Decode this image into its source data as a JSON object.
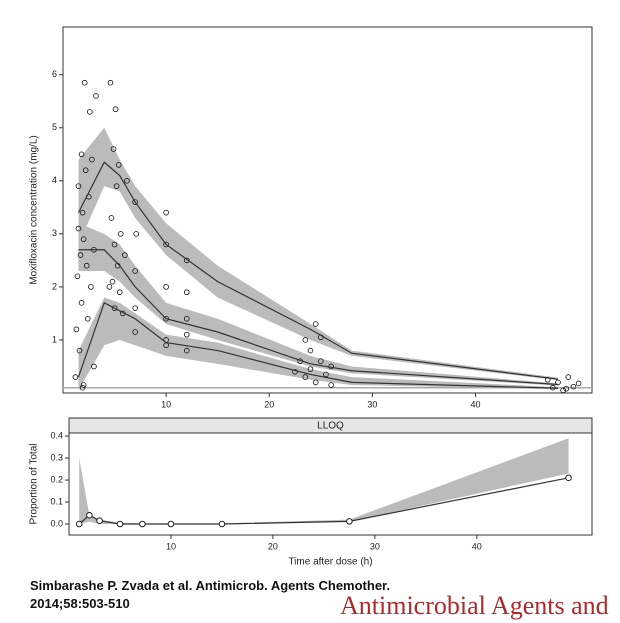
{
  "chart_data": [
    {
      "type": "line",
      "ylabel": "Moxifloxacin concentration (mg/L)",
      "xlim": [
        0,
        51.3
      ],
      "ylim": [
        0,
        6.9
      ],
      "xticks": [
        10,
        20,
        30,
        40
      ],
      "yticks": [
        1,
        2,
        3,
        4,
        5,
        6
      ],
      "lloq": 0.1,
      "x": [
        1.5,
        4,
        5.5,
        7,
        10,
        15,
        24,
        28,
        48
      ],
      "bands": [
        {
          "color": "#bbbbbb",
          "low": [
            2.8,
            3.9,
            3.8,
            3.3,
            2.6,
            1.8,
            1.0,
            0.7,
            0.24
          ],
          "high": [
            4.4,
            5.0,
            4.4,
            3.9,
            3.2,
            2.4,
            1.3,
            0.8,
            0.29
          ]
        },
        {
          "color": "#bbbbbb",
          "low": [
            2.3,
            2.3,
            2.1,
            1.8,
            1.3,
            1.0,
            0.5,
            0.37,
            0.14
          ],
          "high": [
            3.2,
            3.0,
            2.8,
            2.4,
            1.7,
            1.4,
            0.7,
            0.5,
            0.18
          ]
        },
        {
          "color": "#bbbbbb",
          "low": [
            0.05,
            0.9,
            1.0,
            0.9,
            0.7,
            0.55,
            0.25,
            0.15,
            0.07
          ],
          "high": [
            0.8,
            1.8,
            1.7,
            1.5,
            1.1,
            0.95,
            0.45,
            0.3,
            0.11
          ]
        }
      ],
      "series": [
        {
          "color": "#333333",
          "values": [
            3.4,
            4.35,
            4.1,
            3.6,
            2.8,
            2.1,
            1.2,
            0.75,
            0.26
          ]
        },
        {
          "color": "#333333",
          "values": [
            2.7,
            2.7,
            2.4,
            2.0,
            1.4,
            1.15,
            0.55,
            0.42,
            0.16
          ]
        },
        {
          "color": "#333333",
          "values": [
            0.3,
            1.7,
            1.55,
            1.4,
            0.95,
            0.8,
            0.35,
            0.2,
            0.09
          ]
        }
      ],
      "points": {
        "x": [
          1.2,
          1.3,
          1.4,
          1.5,
          1.5,
          1.6,
          1.7,
          1.8,
          1.8,
          1.9,
          2.0,
          2.0,
          2.1,
          2.2,
          2.3,
          2.4,
          2.5,
          2.6,
          2.7,
          2.8,
          3.0,
          3.2,
          3.0,
          1.9,
          4.6,
          4.7,
          4.8,
          4.9,
          5.0,
          5.0,
          5.1,
          5.2,
          5.3,
          5.4,
          5.5,
          5.6,
          5.8,
          6.0,
          6.2,
          4.5,
          7.0,
          7.0,
          7.0,
          7.0,
          7.1,
          10,
          10,
          10,
          10,
          10,
          10,
          12,
          12,
          12,
          12,
          12,
          22.5,
          23,
          23.5,
          23.5,
          24,
          24,
          24.5,
          24.5,
          25,
          25.5,
          26,
          26,
          25,
          47,
          47.5,
          48,
          48.5,
          49,
          49.5,
          50,
          48.8
        ],
        "y": [
          0.3,
          1.2,
          2.2,
          3.1,
          3.9,
          0.8,
          2.6,
          4.5,
          1.7,
          3.4,
          0.15,
          2.9,
          5.85,
          4.2,
          2.4,
          1.4,
          3.7,
          5.3,
          2.0,
          4.4,
          2.7,
          5.6,
          0.5,
          0.1,
          5.85,
          3.3,
          2.1,
          4.6,
          2.8,
          1.6,
          5.35,
          3.9,
          2.4,
          4.3,
          1.9,
          3.0,
          1.5,
          2.6,
          4.0,
          2.0,
          3.6,
          2.3,
          1.6,
          1.15,
          3.0,
          3.4,
          2.8,
          2.0,
          1.4,
          1.0,
          0.9,
          2.5,
          1.9,
          1.4,
          1.1,
          0.8,
          0.4,
          0.6,
          1.0,
          0.3,
          0.8,
          0.45,
          1.3,
          0.2,
          0.6,
          0.35,
          0.5,
          0.15,
          1.05,
          0.25,
          0.1,
          0.2,
          0.05,
          0.3,
          0.12,
          0.18,
          0.08
        ]
      }
    },
    {
      "type": "line",
      "strip": "LLOQ",
      "xlabel": "Time after dose (h)",
      "ylabel": "Proportion of Total",
      "xlim": [
        0,
        51.3
      ],
      "ylim": [
        -0.05,
        0.414
      ],
      "xticks": [
        10,
        20,
        30,
        40
      ],
      "yticks": [
        {
          "value": 0,
          "label": "0.0"
        },
        0.1,
        0.2,
        0.3,
        0.4
      ],
      "x": [
        1,
        2,
        3,
        5,
        7.2,
        10,
        15,
        27.5,
        49
      ],
      "bands": [
        {
          "color": "#bbbbbb",
          "low": [
            0,
            0.01,
            0,
            0,
            0,
            0,
            0,
            0.01,
            0.23
          ],
          "high": [
            0.3,
            0.04,
            0.02,
            0.005,
            0.003,
            0.003,
            0.003,
            0.02,
            0.39
          ]
        }
      ],
      "series": [
        {
          "color": "#333333",
          "markers": true,
          "values": [
            0,
            0.04,
            0.015,
            0,
            0,
            0,
            0,
            0.012,
            0.21
          ]
        }
      ]
    }
  ],
  "citation": {
    "line1": "Simbarashe P. Zvada et al. Antimicrob. Agents Chemother.",
    "line2": "2014;58:503-510"
  },
  "brand": "Antimicrobial Agents and"
}
